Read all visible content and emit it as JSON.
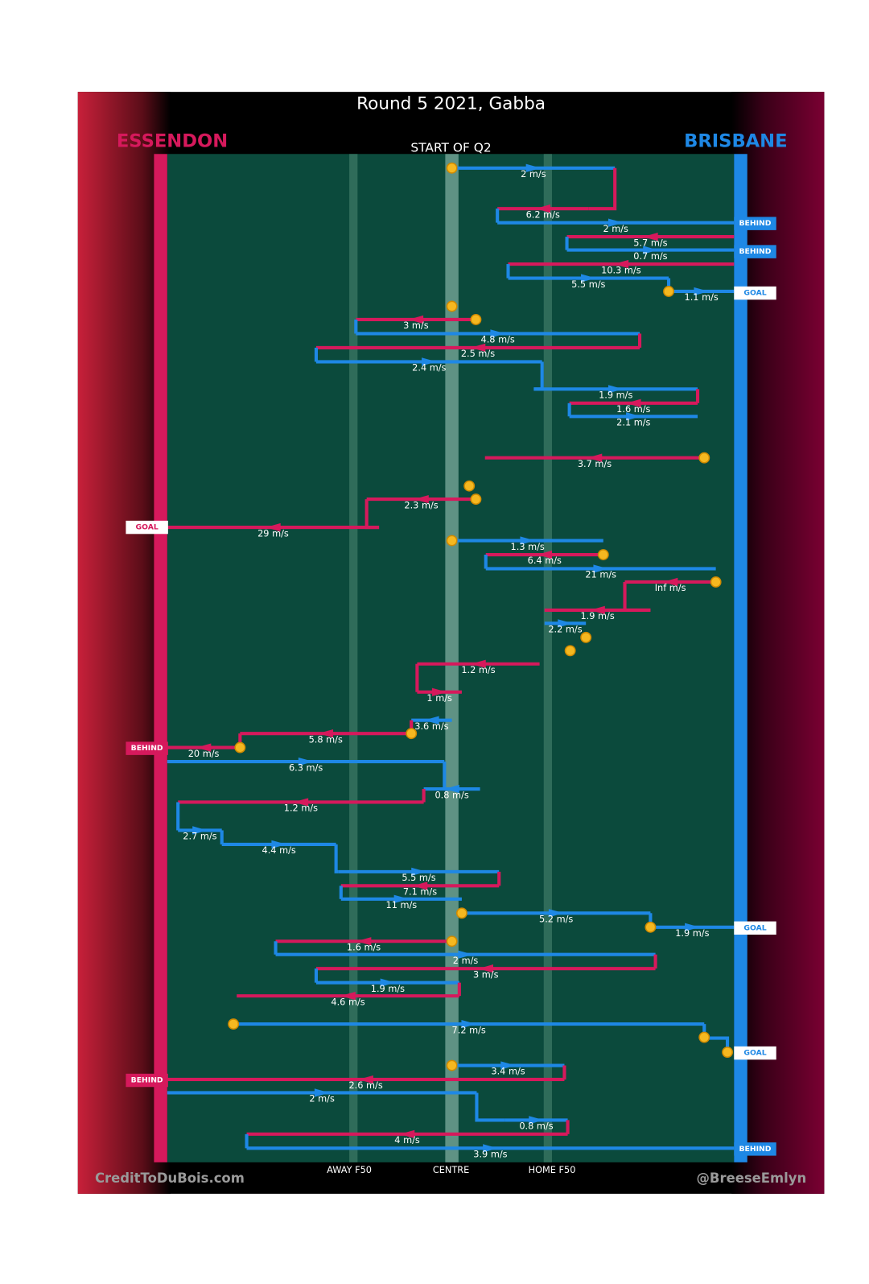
{
  "header": {
    "title": "Round 5 2021, Gabba",
    "team_left": "ESSENDON",
    "team_right": "BRISBANE",
    "period": "START OF Q2"
  },
  "moves": [
    "2 m/s",
    "6.2 m/s",
    "2 m/s",
    "5.7 m/s",
    "0.7 m/s",
    "10.3 m/s",
    "5.5 m/s",
    "1.1 m/s",
    "3 m/s",
    "4.8 m/s",
    "2.5 m/s",
    "2.4 m/s",
    "1.9 m/s",
    "1.6 m/s",
    "2.1 m/s",
    "3.7 m/s",
    "2.3 m/s",
    "29 m/s",
    "1.3 m/s",
    "6.4 m/s",
    "21 m/s",
    "Inf m/s",
    "1.9 m/s",
    "2.2 m/s",
    "1.2 m/s",
    "1 m/s",
    "3.6 m/s",
    "5.8 m/s",
    "20 m/s",
    "6.3 m/s",
    "0.8 m/s",
    "1.2 m/s",
    "2.7 m/s",
    "4.4 m/s",
    "5.5 m/s",
    "7.1 m/s",
    "11 m/s",
    "5.2 m/s",
    "1.9 m/s",
    "1.6 m/s",
    "2 m/s",
    "3 m/s",
    "1.9 m/s",
    "4.6 m/s",
    "7.2 m/s",
    "3.4 m/s",
    "2.6 m/s",
    "2 m/s",
    "0.8 m/s",
    "4 m/s",
    "3.9 m/s"
  ],
  "outcomes": [
    "BEHIND",
    "BEHIND",
    "GOAL",
    "GOAL",
    "BEHIND",
    "GOAL",
    "GOAL",
    "BEHIND",
    "BEHIND"
  ],
  "zones": [
    "AWAY F50",
    "CENTRE",
    "HOME F50"
  ],
  "footer": {
    "left": "CreditToDuBois.com",
    "right": "@BreeseEmlyn"
  }
}
